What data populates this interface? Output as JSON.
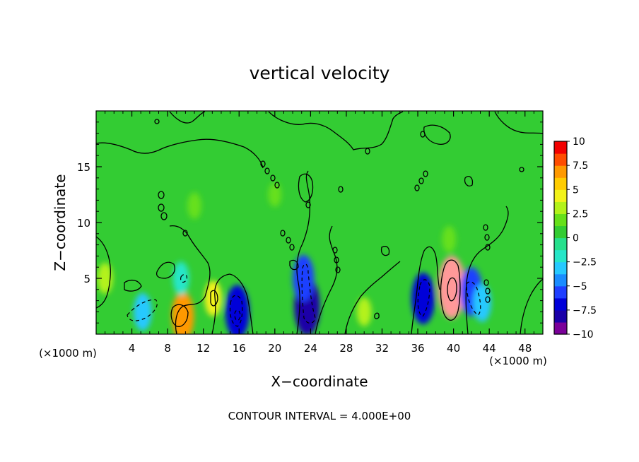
{
  "chart_data": {
    "type": "heatmap",
    "title": "vertical velocity",
    "xlabel": "X−coordinate",
    "ylabel": "Z−coordinate",
    "x_unit_left": "(×1000 m)",
    "x_unit_right": "(×1000 m)",
    "footer": "CONTOUR INTERVAL = 4.000E+00",
    "xlim": [
      0,
      50
    ],
    "ylim": [
      0,
      20
    ],
    "x_ticks": [
      4,
      8,
      12,
      16,
      20,
      24,
      28,
      32,
      36,
      40,
      44,
      48
    ],
    "y_ticks": [
      5,
      10,
      15
    ],
    "colorbar": {
      "min": -10,
      "max": 10,
      "tick_values": [
        10,
        7.5,
        5,
        2.5,
        0,
        -2.5,
        -5,
        -7.5,
        -10
      ],
      "tick_labels": [
        "10",
        "7.5",
        "5",
        "2.5",
        "0",
        "−2.5",
        "−5",
        "−7.5",
        "−10"
      ]
    },
    "features": [
      {
        "x": 9.7,
        "z": 1.6,
        "value": 6.5
      },
      {
        "x": 13.1,
        "z": 3.2,
        "value": 3.5
      },
      {
        "x": 15.8,
        "z": 2.0,
        "value": -7.5
      },
      {
        "x": 23.6,
        "z": 2.5,
        "value": -8.5
      },
      {
        "x": 23.2,
        "z": 5.0,
        "value": -6.0
      },
      {
        "x": 36.6,
        "z": 3.2,
        "value": -7.0
      },
      {
        "x": 39.8,
        "z": 4.2,
        "value": 9.5
      },
      {
        "x": 42.0,
        "z": 3.8,
        "value": -6.5
      },
      {
        "x": 43.2,
        "z": 2.8,
        "value": -4.0
      },
      {
        "x": 5.2,
        "z": 2.0,
        "value": -4.0
      },
      {
        "x": 9.5,
        "z": 5.0,
        "value": -3.0
      },
      {
        "x": 1.0,
        "z": 5.0,
        "value": 2.5
      },
      {
        "x": 11.0,
        "z": 11.5,
        "value": 1.5
      },
      {
        "x": 20.0,
        "z": 12.5,
        "value": 1.0
      },
      {
        "x": 39.5,
        "z": 8.5,
        "value": 1.5
      },
      {
        "x": 30.0,
        "z": 2.0,
        "value": 2.0
      }
    ]
  }
}
